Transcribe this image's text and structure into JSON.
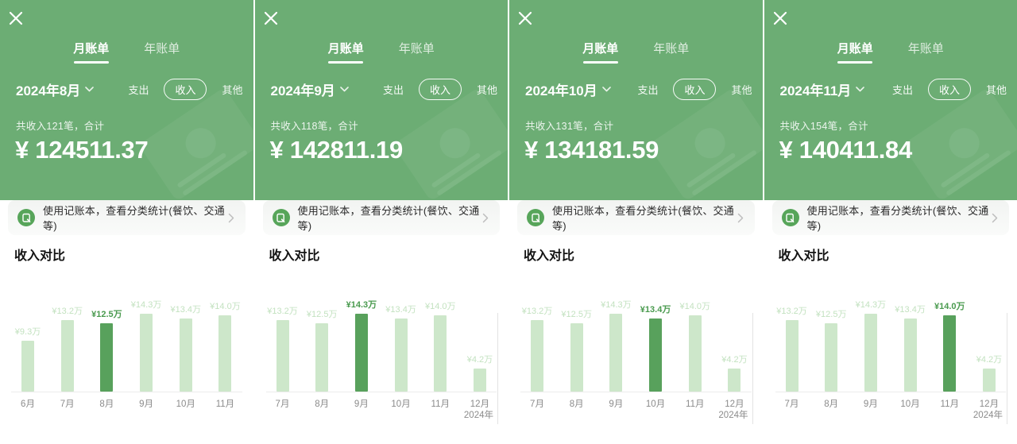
{
  "colors": {
    "header_green": "#6cad74",
    "bar_light": "#cde7ca",
    "bar_selected": "#58a15c",
    "value_label_light": "#c3e2c0",
    "value_label_selected": "#499a4e",
    "banner_icon_green": "#57a55a",
    "axis_gray": "#ececec"
  },
  "shared": {
    "tabs": [
      {
        "label": "月账单",
        "active": true
      },
      {
        "label": "年账单",
        "active": false
      }
    ],
    "filters": [
      {
        "label": "支出",
        "selected": false
      },
      {
        "label": "收入",
        "selected": true
      },
      {
        "label": "其他",
        "selected": false
      }
    ],
    "banner": {
      "text": "使用记账本，查看分类统计(餐饮、交通等)"
    },
    "section_title": "收入对比"
  },
  "panels": [
    {
      "month_selector": "2024年8月",
      "summary": "共收入121笔，合计",
      "amount": "¥ 124511.37",
      "chart_data": {
        "type": "bar",
        "title": "收入对比",
        "categories": [
          "6月",
          "7月",
          "8月",
          "9月",
          "10月",
          "11月"
        ],
        "values": [
          9.3,
          13.2,
          12.5,
          14.3,
          13.4,
          14.0
        ],
        "value_labels": [
          "¥9.3万",
          "¥13.2万",
          "¥12.5万",
          "¥14.3万",
          "¥13.4万",
          "¥14.0万"
        ],
        "unit": "万",
        "selected_index": 2,
        "year_label": null
      }
    },
    {
      "month_selector": "2024年9月",
      "summary": "共收入118笔，合计",
      "amount": "¥ 142811.19",
      "chart_data": {
        "type": "bar",
        "title": "收入对比",
        "categories": [
          "7月",
          "8月",
          "9月",
          "10月",
          "11月",
          "12月"
        ],
        "values": [
          13.2,
          12.5,
          14.3,
          13.4,
          14.0,
          4.2
        ],
        "value_labels": [
          "¥13.2万",
          "¥12.5万",
          "¥14.3万",
          "¥13.4万",
          "¥14.0万",
          "¥4.2万"
        ],
        "unit": "万",
        "selected_index": 2,
        "year_label": "2024年"
      }
    },
    {
      "month_selector": "2024年10月",
      "summary": "共收入131笔，合计",
      "amount": "¥ 134181.59",
      "chart_data": {
        "type": "bar",
        "title": "收入对比",
        "categories": [
          "7月",
          "8月",
          "9月",
          "10月",
          "11月",
          "12月"
        ],
        "values": [
          13.2,
          12.5,
          14.3,
          13.4,
          14.0,
          4.2
        ],
        "value_labels": [
          "¥13.2万",
          "¥12.5万",
          "¥14.3万",
          "¥13.4万",
          "¥14.0万",
          "¥4.2万"
        ],
        "unit": "万",
        "selected_index": 3,
        "year_label": "2024年"
      }
    },
    {
      "month_selector": "2024年11月",
      "summary": "共收入154笔，合计",
      "amount": "¥ 140411.84",
      "chart_data": {
        "type": "bar",
        "title": "收入对比",
        "categories": [
          "7月",
          "8月",
          "9月",
          "10月",
          "11月",
          "12月"
        ],
        "values": [
          13.2,
          12.5,
          14.3,
          13.4,
          14.0,
          4.2
        ],
        "value_labels": [
          "¥13.2万",
          "¥12.5万",
          "¥14.3万",
          "¥13.4万",
          "¥14.0万",
          "¥4.2万"
        ],
        "unit": "万",
        "selected_index": 4,
        "year_label": "2024年"
      }
    }
  ]
}
